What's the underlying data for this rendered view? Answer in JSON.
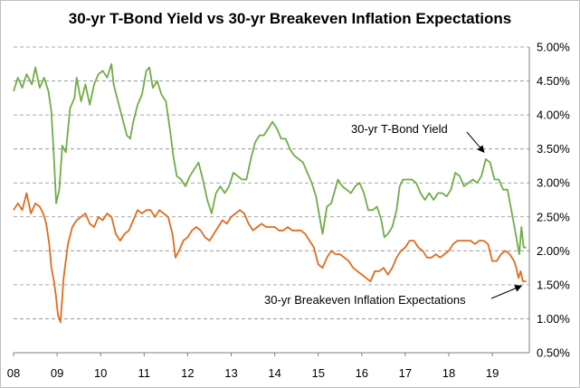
{
  "chart_data": {
    "type": "line",
    "title": "30-yr T-Bond Yield vs 30-yr Breakeven Inflation Expectations",
    "x_tick_labels": [
      "08",
      "09",
      "10",
      "11",
      "12",
      "13",
      "14",
      "15",
      "16",
      "17",
      "18",
      "19"
    ],
    "x_tick_years": [
      2008,
      2009,
      2010,
      2011,
      2012,
      2013,
      2014,
      2015,
      2016,
      2017,
      2018,
      2019
    ],
    "xlim": [
      2008.0,
      2019.85
    ],
    "ylim": [
      0.5,
      5.0
    ],
    "y_ticks": [
      0.5,
      1.0,
      1.5,
      2.0,
      2.5,
      3.0,
      3.5,
      4.0,
      4.5,
      5.0
    ],
    "y_tick_labels": [
      "0.50%",
      "1.00%",
      "1.50%",
      "2.00%",
      "2.50%",
      "3.00%",
      "3.50%",
      "4.00%",
      "4.50%",
      "5.00%"
    ],
    "y_axis_side": "right",
    "grid": "horizontal dashed",
    "series": [
      {
        "color": "#70ad47",
        "x": [
          2008.0,
          2008.1,
          2008.2,
          2008.3,
          2008.42,
          2008.5,
          2008.6,
          2008.7,
          2008.8,
          2008.87,
          2008.93,
          2008.98,
          2009.05,
          2009.12,
          2009.2,
          2009.3,
          2009.4,
          2009.45,
          2009.55,
          2009.65,
          2009.75,
          2009.85,
          2009.95,
          2010.05,
          2010.15,
          2010.25,
          2010.3,
          2010.4,
          2010.5,
          2010.6,
          2010.68,
          2010.75,
          2010.85,
          2010.95,
          2011.05,
          2011.12,
          2011.2,
          2011.3,
          2011.4,
          2011.5,
          2011.6,
          2011.67,
          2011.75,
          2011.85,
          2011.95,
          2012.05,
          2012.15,
          2012.25,
          2012.35,
          2012.45,
          2012.55,
          2012.65,
          2012.75,
          2012.85,
          2012.95,
          2013.05,
          2013.15,
          2013.25,
          2013.35,
          2013.45,
          2013.55,
          2013.65,
          2013.75,
          2013.85,
          2013.95,
          2014.05,
          2014.15,
          2014.25,
          2014.35,
          2014.45,
          2014.55,
          2014.65,
          2014.75,
          2014.85,
          2014.95,
          2015.03,
          2015.1,
          2015.2,
          2015.3,
          2015.45,
          2015.55,
          2015.65,
          2015.75,
          2015.85,
          2015.95,
          2016.05,
          2016.15,
          2016.25,
          2016.35,
          2016.45,
          2016.52,
          2016.6,
          2016.7,
          2016.8,
          2016.87,
          2016.95,
          2017.05,
          2017.15,
          2017.25,
          2017.35,
          2017.45,
          2017.55,
          2017.65,
          2017.75,
          2017.85,
          2017.95,
          2018.05,
          2018.15,
          2018.25,
          2018.35,
          2018.45,
          2018.55,
          2018.65,
          2018.75,
          2018.85,
          2018.95,
          2019.05,
          2019.15,
          2019.25,
          2019.35,
          2019.45,
          2019.55,
          2019.62,
          2019.67,
          2019.72,
          2019.78
        ],
        "values": [
          4.35,
          4.55,
          4.4,
          4.6,
          4.45,
          4.7,
          4.4,
          4.55,
          4.35,
          4.05,
          3.35,
          2.7,
          2.9,
          3.55,
          3.45,
          4.1,
          4.25,
          4.55,
          4.2,
          4.45,
          4.15,
          4.45,
          4.6,
          4.65,
          4.55,
          4.75,
          4.45,
          4.2,
          3.95,
          3.7,
          3.65,
          3.9,
          4.15,
          4.3,
          4.65,
          4.7,
          4.4,
          4.5,
          4.3,
          4.2,
          3.75,
          3.4,
          3.1,
          3.05,
          2.95,
          3.1,
          3.2,
          3.3,
          3.05,
          2.75,
          2.55,
          2.85,
          2.95,
          2.85,
          2.95,
          3.15,
          3.1,
          3.05,
          3.05,
          3.35,
          3.6,
          3.7,
          3.7,
          3.8,
          3.9,
          3.8,
          3.65,
          3.65,
          3.5,
          3.4,
          3.35,
          3.3,
          3.15,
          3.0,
          2.8,
          2.5,
          2.25,
          2.65,
          2.7,
          3.05,
          2.95,
          2.9,
          2.85,
          2.95,
          3.0,
          2.85,
          2.6,
          2.6,
          2.65,
          2.45,
          2.2,
          2.25,
          2.35,
          2.6,
          2.95,
          3.05,
          3.05,
          3.05,
          3.0,
          2.85,
          2.75,
          2.85,
          2.75,
          2.85,
          2.85,
          2.8,
          2.9,
          3.15,
          3.1,
          2.95,
          3.0,
          3.05,
          3.0,
          3.1,
          3.35,
          3.3,
          3.05,
          3.05,
          2.9,
          2.9,
          2.55,
          2.2,
          1.95,
          2.35,
          2.05,
          2.05
        ]
      },
      {
        "color": "#e06c1e",
        "x": [
          2008.0,
          2008.1,
          2008.2,
          2008.3,
          2008.4,
          2008.5,
          2008.6,
          2008.68,
          2008.75,
          2008.82,
          2008.87,
          2008.93,
          2008.97,
          2009.02,
          2009.08,
          2009.15,
          2009.25,
          2009.35,
          2009.45,
          2009.55,
          2009.65,
          2009.75,
          2009.85,
          2009.95,
          2010.05,
          2010.15,
          2010.25,
          2010.35,
          2010.45,
          2010.55,
          2010.65,
          2010.75,
          2010.85,
          2010.95,
          2011.05,
          2011.15,
          2011.25,
          2011.35,
          2011.45,
          2011.55,
          2011.65,
          2011.72,
          2011.8,
          2011.9,
          2012.0,
          2012.1,
          2012.2,
          2012.3,
          2012.4,
          2012.5,
          2012.6,
          2012.7,
          2012.8,
          2012.9,
          2013.0,
          2013.1,
          2013.2,
          2013.3,
          2013.4,
          2013.5,
          2013.6,
          2013.7,
          2013.8,
          2013.9,
          2014.0,
          2014.1,
          2014.2,
          2014.3,
          2014.4,
          2014.5,
          2014.6,
          2014.7,
          2014.8,
          2014.9,
          2015.0,
          2015.1,
          2015.2,
          2015.3,
          2015.4,
          2015.5,
          2015.6,
          2015.7,
          2015.8,
          2015.9,
          2016.0,
          2016.1,
          2016.2,
          2016.3,
          2016.4,
          2016.5,
          2016.6,
          2016.7,
          2016.8,
          2016.9,
          2017.0,
          2017.1,
          2017.2,
          2017.3,
          2017.4,
          2017.5,
          2017.6,
          2017.7,
          2017.8,
          2017.9,
          2018.0,
          2018.1,
          2018.2,
          2018.3,
          2018.4,
          2018.5,
          2018.6,
          2018.7,
          2018.8,
          2018.9,
          2019.0,
          2019.1,
          2019.2,
          2019.3,
          2019.4,
          2019.5,
          2019.55,
          2019.6,
          2019.65,
          2019.7,
          2019.78
        ],
        "values": [
          2.6,
          2.7,
          2.6,
          2.85,
          2.55,
          2.7,
          2.65,
          2.55,
          2.4,
          2.1,
          1.75,
          1.55,
          1.35,
          1.05,
          0.95,
          1.6,
          2.1,
          2.35,
          2.45,
          2.5,
          2.55,
          2.4,
          2.35,
          2.5,
          2.45,
          2.55,
          2.5,
          2.25,
          2.15,
          2.25,
          2.3,
          2.45,
          2.6,
          2.55,
          2.6,
          2.6,
          2.5,
          2.6,
          2.55,
          2.5,
          2.25,
          1.9,
          2.0,
          2.15,
          2.2,
          2.3,
          2.35,
          2.3,
          2.2,
          2.15,
          2.25,
          2.35,
          2.45,
          2.4,
          2.5,
          2.55,
          2.6,
          2.55,
          2.4,
          2.3,
          2.35,
          2.4,
          2.35,
          2.35,
          2.35,
          2.3,
          2.3,
          2.35,
          2.3,
          2.3,
          2.3,
          2.25,
          2.15,
          2.05,
          1.8,
          1.75,
          1.9,
          2.0,
          1.95,
          1.95,
          1.9,
          1.85,
          1.75,
          1.7,
          1.65,
          1.6,
          1.55,
          1.7,
          1.7,
          1.75,
          1.65,
          1.75,
          1.9,
          2.0,
          2.05,
          2.15,
          2.15,
          2.05,
          2.0,
          1.9,
          1.9,
          1.95,
          1.9,
          1.95,
          2.0,
          2.1,
          2.15,
          2.15,
          2.15,
          2.15,
          2.1,
          2.15,
          2.15,
          2.1,
          1.85,
          1.85,
          1.95,
          2.0,
          1.95,
          1.85,
          1.75,
          1.6,
          1.7,
          1.55,
          1.55
        ]
      }
    ],
    "annotations": [
      {
        "text": "30-yr T-Bond Yield",
        "points_to": [
          2018.85,
          3.4
        ]
      },
      {
        "text": "30-yr Breakeven Inflation Expectations",
        "points_to": [
          2019.75,
          1.55
        ]
      }
    ]
  }
}
